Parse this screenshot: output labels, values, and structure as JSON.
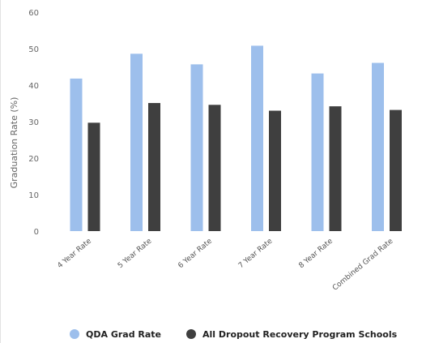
{
  "chart_data": {
    "type": "bar",
    "title": "",
    "xlabel": "",
    "ylabel": "Graduation Rate (%)",
    "ylim": [
      0,
      60
    ],
    "yticks": [
      0,
      10,
      20,
      30,
      40,
      50,
      60
    ],
    "grid": false,
    "legend_position": "bottom",
    "categories": [
      "4 Year Rate",
      "5 Year Rate",
      "6 Year Rate",
      "7 Year Rate",
      "8 Year Rate",
      "Combined Grad Rate"
    ],
    "series": [
      {
        "name": "QDA Grad Rate",
        "color": "#9dbfec",
        "values": [
          41.8,
          48.6,
          45.7,
          50.8,
          43.2,
          46.1
        ]
      },
      {
        "name": "All Dropout Recovery Program Schools",
        "color": "#3f3f3f",
        "values": [
          29.7,
          35.1,
          34.6,
          33.0,
          34.2,
          33.2
        ]
      }
    ]
  }
}
